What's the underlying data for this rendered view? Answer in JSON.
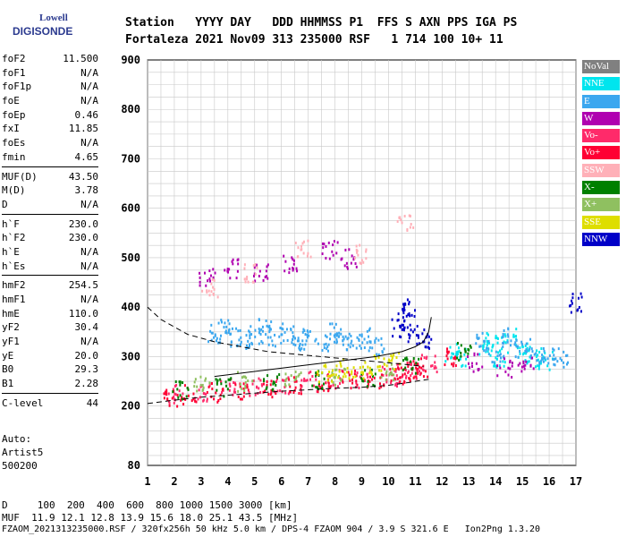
{
  "logo": {
    "line1": "Lowell",
    "line2": "DIGISONDE"
  },
  "header": {
    "row1": "Station   YYYY DAY   DDD HHMMSS P1  FFS S AXN PPS IGA PS",
    "row2": "Fortaleza 2021 Nov09 313 235000 RSF   1 714 100 10+ 11"
  },
  "params": [
    {
      "group": [
        {
          "k": "foF2",
          "v": "11.500"
        },
        {
          "k": "foF1",
          "v": "N/A"
        },
        {
          "k": "foF1p",
          "v": "N/A"
        },
        {
          "k": "foE",
          "v": "N/A"
        },
        {
          "k": "foEp",
          "v": "0.46"
        },
        {
          "k": "fxI",
          "v": "11.85"
        },
        {
          "k": "foEs",
          "v": "N/A"
        },
        {
          "k": "fmin",
          "v": "4.65"
        }
      ]
    },
    {
      "group": [
        {
          "k": "MUF(D)",
          "v": "43.50"
        },
        {
          "k": "M(D)",
          "v": "3.78"
        },
        {
          "k": "D",
          "v": "N/A"
        }
      ]
    },
    {
      "group": [
        {
          "k": "h`F",
          "v": "230.0"
        },
        {
          "k": "h`F2",
          "v": "230.0"
        },
        {
          "k": "h`E",
          "v": "N/A"
        },
        {
          "k": "h`Es",
          "v": "N/A"
        }
      ]
    },
    {
      "group": [
        {
          "k": "hmF2",
          "v": "254.5"
        },
        {
          "k": "hmF1",
          "v": "N/A"
        },
        {
          "k": "hmE",
          "v": "110.0"
        },
        {
          "k": "yF2",
          "v": "30.4"
        },
        {
          "k": "yF1",
          "v": "N/A"
        },
        {
          "k": "yE",
          "v": "20.0"
        },
        {
          "k": "B0",
          "v": "29.3"
        },
        {
          "k": "B1",
          "v": "2.28"
        }
      ]
    },
    {
      "group": [
        {
          "k": "C-level",
          "v": "44"
        }
      ]
    }
  ],
  "auto": {
    "line1": "Auto:",
    "line2": "Artist5",
    "line3": "500200"
  },
  "legend": [
    {
      "label": "NoVal",
      "color": "#808080"
    },
    {
      "label": "NNE",
      "color": "#00e5ee"
    },
    {
      "label": "E",
      "color": "#3ba7ef"
    },
    {
      "label": "W",
      "color": "#b000b0"
    },
    {
      "label": "Vo-",
      "color": "#ff2a6a"
    },
    {
      "label": "Vo+",
      "color": "#ff0033"
    },
    {
      "label": "SSW",
      "color": "#ffb0b8"
    },
    {
      "label": "X-",
      "color": "#008000"
    },
    {
      "label": "X+",
      "color": "#8fc060"
    },
    {
      "label": "SSE",
      "color": "#dede00"
    },
    {
      "label": "NNW",
      "color": "#0000c8"
    }
  ],
  "footer": {
    "line1": "D     100  200  400  600  800 1000 1500 3000 [km]",
    "line2": "MUF  11.9 12.1 12.8 13.9 15.6 18.0 25.1 43.5 [MHz]",
    "line3": "FZAOM_2021313235000.RSF / 320fx256h 50 kHz 5.0 km / DPS-4 FZAOM 904 / 3.9 S 321.6 E   Ion2Png 1.3.20"
  },
  "chart_data": {
    "type": "scatter",
    "title": "",
    "xlabel": "",
    "ylabel": "",
    "xlim": [
      1,
      17
    ],
    "ylim": [
      80,
      900
    ],
    "x_ticks": [
      1,
      2,
      3,
      4,
      5,
      6,
      7,
      8,
      9,
      10,
      11,
      12,
      13,
      14,
      15,
      16,
      17
    ],
    "y_ticks": [
      80,
      200,
      300,
      400,
      500,
      600,
      700,
      800,
      900
    ],
    "grid": true,
    "series": [
      {
        "name": "NNE",
        "color": "#00e5ee",
        "x": [
          12.4,
          12.6,
          13.6,
          13.9,
          14.2,
          14.5,
          15.0,
          15.4,
          15.8
        ],
        "y": [
          310,
          300,
          320,
          330,
          300,
          340,
          310,
          300,
          295
        ]
      },
      {
        "name": "E",
        "color": "#3ba7ef",
        "x": [
          3.4,
          3.8,
          4.2,
          4.6,
          5.0,
          5.4,
          5.8,
          6.2,
          6.6,
          7.0,
          7.5,
          7.9,
          8.3,
          8.7,
          9.1,
          9.5,
          13.5,
          14.0,
          14.5,
          15.0,
          15.5,
          16.0,
          16.4
        ],
        "y": [
          350,
          360,
          340,
          330,
          345,
          360,
          340,
          350,
          330,
          340,
          330,
          350,
          340,
          330,
          340,
          320,
          330,
          310,
          340,
          320,
          300,
          300,
          300
        ]
      },
      {
        "name": "W",
        "color": "#b000b0",
        "x": [
          3.2,
          4.1,
          5.2,
          6.3,
          7.8,
          8.5,
          13.2,
          14.3,
          15.1
        ],
        "y": [
          460,
          480,
          470,
          490,
          520,
          500,
          290,
          280,
          285
        ]
      },
      {
        "name": "Vo-",
        "color": "#ff2a6a",
        "x": [
          2.0,
          3.0,
          4.0,
          5.0,
          6.0,
          7.0,
          8.0,
          9.0,
          10.0,
          10.5,
          11.0,
          11.5
        ],
        "y": [
          225,
          232,
          238,
          242,
          246,
          252,
          255,
          258,
          262,
          268,
          275,
          290
        ]
      },
      {
        "name": "Vo+",
        "color": "#ff0033",
        "x": [
          1.8,
          2.5,
          3.5,
          4.5,
          5.5,
          6.5,
          7.5,
          8.5,
          9.5,
          10.3,
          10.8,
          11.2,
          12.2
        ],
        "y": [
          218,
          225,
          230,
          235,
          240,
          245,
          250,
          254,
          258,
          263,
          270,
          280,
          300
        ]
      },
      {
        "name": "SSW",
        "color": "#ffb0b8",
        "x": [
          3.3,
          4.8,
          6.8,
          8.9,
          10.6
        ],
        "y": [
          440,
          470,
          520,
          510,
          570
        ]
      },
      {
        "name": "X-",
        "color": "#008000",
        "x": [
          2.2,
          3.8,
          5.6,
          7.3,
          9.2,
          10.8,
          12.8
        ],
        "y": [
          235,
          240,
          250,
          255,
          262,
          285,
          310
        ]
      },
      {
        "name": "X+",
        "color": "#8fc060",
        "x": [
          3.0,
          4.6,
          6.4,
          8.1,
          9.9
        ],
        "y": [
          245,
          252,
          258,
          265,
          275
        ]
      },
      {
        "name": "SSE",
        "color": "#dede00",
        "x": [
          7.6,
          8.2,
          8.8,
          9.4,
          10.1
        ],
        "y": [
          270,
          280,
          275,
          285,
          290
        ]
      },
      {
        "name": "NNW",
        "color": "#0000c8",
        "x": [
          10.4,
          10.6,
          10.8,
          11.0,
          11.3,
          16.9
        ],
        "y": [
          360,
          380,
          400,
          350,
          330,
          410
        ]
      }
    ],
    "curves": [
      {
        "name": "profile",
        "style": "dashed",
        "x": [
          1.0,
          2.0,
          3.0,
          4.0,
          5.0,
          6.0,
          7.0,
          8.0,
          9.0,
          10.0,
          10.8,
          11.2,
          11.5
        ],
        "y": [
          205,
          212,
          218,
          222,
          226,
          230,
          233,
          236,
          238,
          242,
          248,
          252,
          254
        ]
      },
      {
        "name": "profile-upper",
        "style": "dashed",
        "x": [
          1.0,
          1.5,
          2.5,
          3.5,
          4.5,
          5.5,
          6.5,
          7.5,
          8.5,
          9.5,
          10.5,
          11.0,
          11.3
        ],
        "y": [
          400,
          375,
          345,
          330,
          320,
          310,
          305,
          300,
          295,
          290,
          285,
          282,
          280
        ]
      },
      {
        "name": "trace",
        "style": "solid",
        "x": [
          3.5,
          5.0,
          6.5,
          8.0,
          9.5,
          10.5,
          11.0,
          11.3,
          11.5,
          11.6
        ],
        "y": [
          260,
          270,
          280,
          290,
          300,
          310,
          320,
          330,
          350,
          380
        ]
      }
    ]
  }
}
